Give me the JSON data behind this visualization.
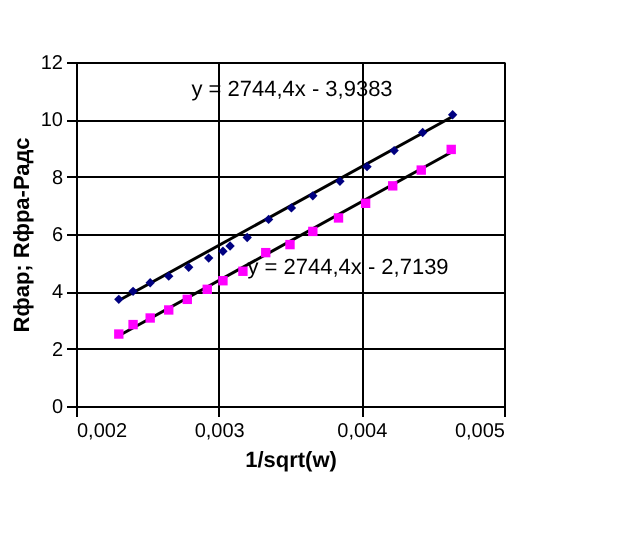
{
  "chart_data": {
    "type": "scatter",
    "xlabel": "1/sqrt(w)",
    "ylabel": "Rфар; Rфра-Радс",
    "xlim": [
      0.002,
      0.005
    ],
    "xticks": [
      {
        "value": 0.002,
        "label": "0,002"
      },
      {
        "value": 0.003,
        "label": "0,003"
      },
      {
        "value": 0.004,
        "label": "0,004"
      },
      {
        "value": 0.005,
        "label": "0,005"
      }
    ],
    "ylim": [
      0,
      12
    ],
    "yticks": [
      0,
      2,
      4,
      6,
      8,
      10,
      12
    ],
    "grid": true,
    "series": [
      {
        "color": "#000080",
        "marker": "diamond",
        "x": [
          0.0023,
          0.0024,
          0.00252,
          0.00265,
          0.00279,
          0.00293,
          0.00303,
          0.00308,
          0.0032,
          0.00335,
          0.00351,
          0.00366,
          0.00385,
          0.00404,
          0.00423,
          0.00443,
          0.00464
        ],
        "values": [
          3.72,
          4.0,
          4.3,
          4.53,
          4.84,
          5.16,
          5.4,
          5.58,
          5.88,
          6.51,
          6.91,
          7.33,
          7.84,
          8.35,
          8.91,
          9.54,
          10.16
        ]
      },
      {
        "color": "#ff00ff",
        "marker": "square",
        "x": [
          0.0023,
          0.0024,
          0.00252,
          0.00265,
          0.00278,
          0.00292,
          0.00303,
          0.00317,
          0.00333,
          0.0035,
          0.00366,
          0.00384,
          0.00403,
          0.00422,
          0.00442,
          0.00463
        ],
        "values": [
          2.51,
          2.84,
          3.07,
          3.35,
          3.72,
          4.07,
          4.37,
          4.7,
          5.35,
          5.63,
          6.09,
          6.56,
          7.07,
          7.68,
          8.23,
          8.95
        ]
      },
      {
        "type": "line",
        "color": "#000000",
        "x": [
          0.0023,
          0.00464
        ],
        "values": [
          3.68,
          10.1
        ]
      },
      {
        "type": "line",
        "color": "#000000",
        "x": [
          0.0023,
          0.00463
        ],
        "values": [
          2.45,
          8.85
        ]
      }
    ],
    "annotations": [
      "y = 2744,4x - 3,9383",
      "y = 2744,4x - 2,7139"
    ]
  }
}
